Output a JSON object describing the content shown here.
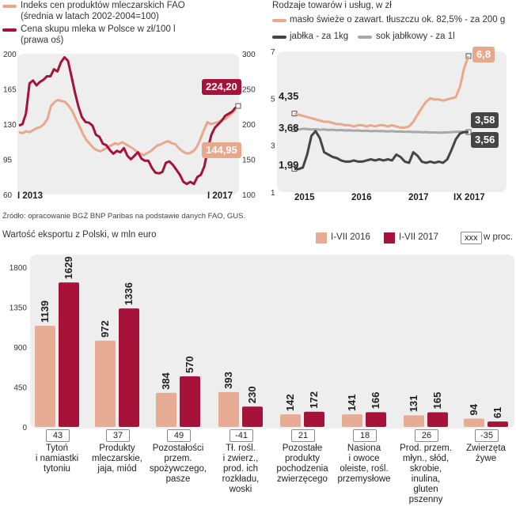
{
  "chart_data": [
    {
      "type": "line",
      "title": "",
      "legend": [
        {
          "label": "Indeks cen produktów mleczarskich FAO",
          "sublabel": "(średnia w latach 2002-2004=100)",
          "color": "#e8a88c"
        },
        {
          "label": "Cena skupu mleka w Polsce w zł/100 l",
          "sublabel": "(prawa oś)",
          "color": "#a5123a"
        }
      ],
      "x_labels": [
        "I 2013",
        "I 2017"
      ],
      "left_axis": {
        "ticks": [
          60,
          95,
          130,
          165,
          200
        ],
        "range": [
          60,
          200
        ]
      },
      "right_axis": {
        "ticks": [
          100,
          150,
          200,
          250,
          300
        ],
        "range": [
          100,
          300
        ]
      },
      "series": [
        {
          "name": "Indeks cen FAO",
          "axis": "left",
          "values": [
            122,
            121,
            123,
            122,
            124,
            126,
            127,
            130,
            135,
            148,
            152,
            154,
            153,
            152,
            148,
            143,
            135,
            128,
            120,
            114,
            110,
            106,
            104,
            103,
            105,
            107,
            109,
            111,
            110,
            112,
            110,
            108,
            106,
            103,
            101,
            99,
            101,
            103,
            106,
            109,
            110,
            112,
            113,
            111,
            110,
            106,
            103,
            101,
            101,
            103,
            107,
            115,
            124,
            132,
            130,
            131,
            132,
            134,
            135,
            138,
            141,
            144.95
          ],
          "end_label": "144,95"
        },
        {
          "name": "Cena skupu mleka",
          "axis": "right",
          "values": [
            198,
            200,
            215,
            258,
            262,
            255,
            260,
            263,
            268,
            268,
            278,
            275,
            288,
            295,
            290,
            268,
            245,
            225,
            210,
            203,
            202,
            198,
            185,
            182,
            172,
            170,
            163,
            158,
            162,
            160,
            166,
            155,
            150,
            155,
            160,
            151,
            148,
            148,
            138,
            131,
            130,
            132,
            145,
            147,
            142,
            135,
            128,
            118,
            115,
            118,
            115,
            125,
            128,
            140,
            165,
            185,
            195,
            200,
            205,
            212,
            215,
            218,
            224.2
          ],
          "end_label": "224,20"
        }
      ]
    },
    {
      "type": "line",
      "title": "Rodzaje towarów i usług, w zł",
      "legend": [
        {
          "label": "masło świeże o zawart. tłuszczu ok. 82,5% - za 200 g",
          "color": "#e8a88c"
        },
        {
          "label": "jabłka - za 1kg",
          "color": "#454545"
        },
        {
          "label": "sok jabłkowy - za 1l",
          "color": "#a8a8a8"
        }
      ],
      "x_labels": [
        "2015",
        "2016",
        "2017",
        "IX 2017"
      ],
      "y_ticks": [
        1,
        3,
        5,
        7
      ],
      "ylim": [
        1,
        7
      ],
      "series": [
        {
          "name": "masło",
          "start_label": "4,35",
          "end_label": "6,8",
          "values": [
            4.35,
            4.3,
            4.25,
            4.2,
            4.15,
            4.1,
            4.05,
            4.0,
            4.0,
            3.95,
            3.9,
            3.9,
            3.85,
            3.85,
            3.8,
            3.85,
            3.85,
            3.8,
            3.85,
            3.8,
            3.85,
            3.85,
            3.8,
            3.85,
            3.8,
            3.75,
            3.75,
            3.8,
            4.0,
            4.3,
            4.6,
            4.85,
            5.0,
            4.95,
            4.95,
            4.9,
            4.95,
            5.0,
            5.05,
            5.5,
            6.3,
            6.8
          ]
        },
        {
          "name": "jabłka",
          "start_label": "1,99",
          "end_label": "3,56",
          "values": [
            1.99,
            1.98,
            2.05,
            2.6,
            3.4,
            3.6,
            3.3,
            2.7,
            2.6,
            2.5,
            2.45,
            2.35,
            2.3,
            2.3,
            2.35,
            2.3,
            2.3,
            2.35,
            2.4,
            2.35,
            2.4,
            2.35,
            2.4,
            2.35,
            2.6,
            2.5,
            2.3,
            2.25,
            2.7,
            2.55,
            2.3,
            2.25,
            2.3,
            2.25,
            2.3,
            2.25,
            2.4,
            2.8,
            3.25,
            3.5,
            3.56,
            3.56
          ]
        },
        {
          "name": "sok jabłkowy",
          "start_label": "3,68",
          "end_label": "3,58",
          "values": [
            3.68,
            3.67,
            3.7,
            3.69,
            3.67,
            3.68,
            3.66,
            3.67,
            3.65,
            3.66,
            3.64,
            3.65,
            3.63,
            3.64,
            3.62,
            3.63,
            3.61,
            3.62,
            3.6,
            3.61,
            3.6,
            3.6,
            3.59,
            3.6,
            3.58,
            3.59,
            3.57,
            3.58,
            3.56,
            3.57,
            3.55,
            3.56,
            3.54,
            3.55,
            3.53,
            3.54,
            3.55,
            3.56,
            3.57,
            3.58,
            3.58,
            3.58
          ]
        }
      ]
    },
    {
      "type": "bar",
      "title": "Wartość eksportu z Polski, w mln euro",
      "legend": [
        {
          "label": "I-VII 2016",
          "color": "#e8ab93"
        },
        {
          "label": "I-VII 2017",
          "color": "#a6123a"
        },
        {
          "label": "w proc.",
          "box": "xxx"
        }
      ],
      "y_ticks": [
        0,
        450,
        900,
        1350,
        1800
      ],
      "ylim": [
        0,
        1800
      ],
      "categories": [
        "Tytoń i namiastki tytoniu",
        "Produkty mleczarskie, jaja, miód",
        "Pozostałości przem. spożywczego, pasze",
        "Tł. rośl. i zwierz., prod. ich rozkładu, woski",
        "Pozostałe produkty pochodzenia zwierzęcego",
        "Nasiona i owoce oleiste, rośl. przemysłowe",
        "Prod. przem. młyn., słód, skrobie, inulina, gluten pszenny",
        "Zwierzęta żywe"
      ],
      "category_lines": [
        [
          "Tytoń",
          "i namiastki",
          "tytoniu"
        ],
        [
          "Produkty",
          "mleczarskie,",
          "jaja, miód"
        ],
        [
          "Pozostałości",
          "przem.",
          "spożywczego,",
          "pasze"
        ],
        [
          "Tł. rośl.",
          "i zwierz.,",
          "prod. ich",
          "rozkładu,",
          "woski"
        ],
        [
          "Pozostałe",
          "produkty",
          "pochodzenia",
          "zwierzęcego"
        ],
        [
          "Nasiona",
          "i owoce",
          "oleiste, rośl.",
          "przemysłowe"
        ],
        [
          "Prod. przem.",
          "młyn., słód,",
          "skrobie,",
          "inulina,",
          "gluten",
          "pszenny"
        ],
        [
          "Zwierzęta",
          "żywe"
        ]
      ],
      "series": [
        {
          "name": "I-VII 2016",
          "values": [
            1139,
            972,
            384,
            393,
            142,
            141,
            131,
            94
          ]
        },
        {
          "name": "I-VII 2017",
          "values": [
            1629,
            1336,
            570,
            230,
            172,
            166,
            165,
            61
          ]
        }
      ],
      "change_pct": [
        "43",
        "37",
        "49",
        "-41",
        "21",
        "18",
        "26",
        "-35"
      ]
    }
  ],
  "source": "Źródło: opracowanie BGŻ BNP Paribas na podstawie danych FAO, GUS."
}
